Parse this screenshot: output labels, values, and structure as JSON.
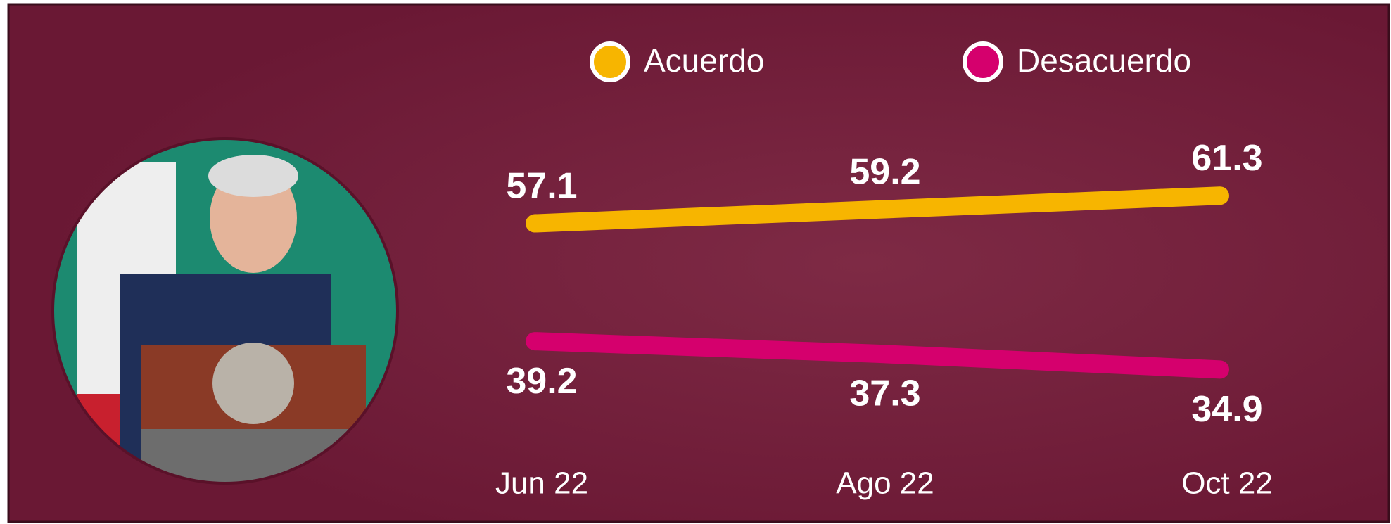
{
  "chart_data": {
    "type": "line",
    "categories": [
      "Jun 22",
      "Ago 22",
      "Oct 22"
    ],
    "series": [
      {
        "name": "Acuerdo",
        "color": "#f7b500",
        "values": [
          57.1,
          59.2,
          61.3
        ]
      },
      {
        "name": "Desacuerdo",
        "color": "#d5006d",
        "values": [
          39.2,
          37.3,
          34.9
        ]
      }
    ]
  }
}
